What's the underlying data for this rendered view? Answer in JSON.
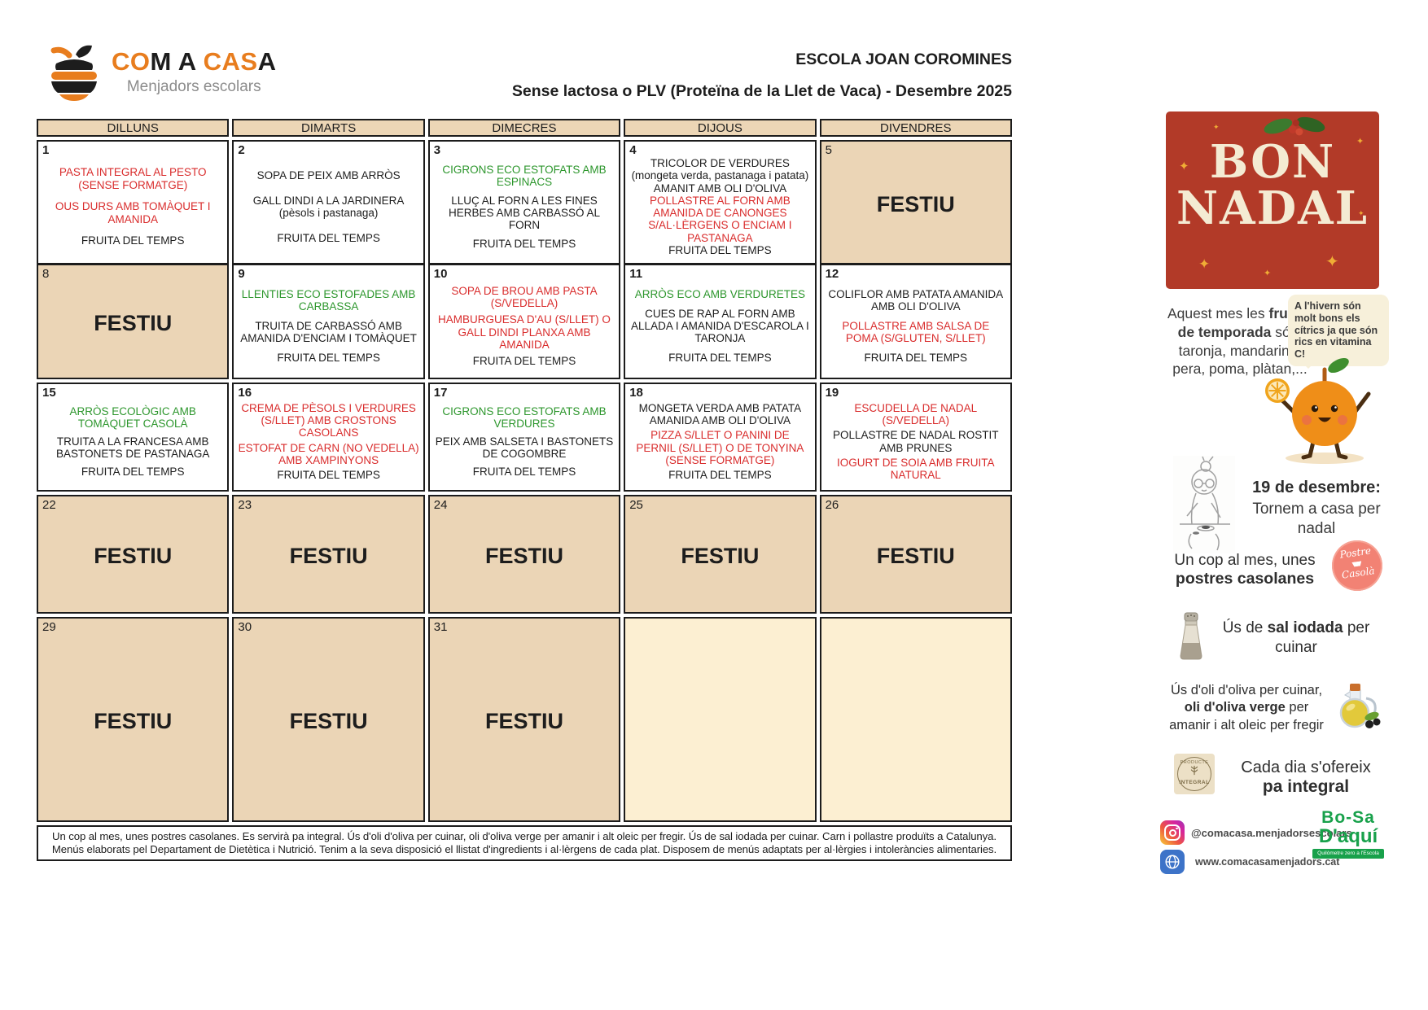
{
  "logo": {
    "parts": [
      {
        "text": "CO",
        "color": "orange"
      },
      {
        "text": "M A ",
        "color": "black"
      },
      {
        "text": "CAS",
        "color": "orange"
      },
      {
        "text": "A",
        "color": "black"
      }
    ],
    "subtitle": "Menjadors escolars"
  },
  "header": {
    "school": "ESCOLA JOAN COROMINES",
    "subtitle": "Sense lactosa o PLV (Proteïna de la Llet de Vaca) - Desembre 2025"
  },
  "colors": {
    "red": "#d92c2c",
    "green": "#2c962c",
    "black": "#1d1d1d",
    "accent_orange": "#e87d1e",
    "banner_red": "#b23a28",
    "festiu_tan": "#ebd5b6",
    "empty_cream": "#fcefd2"
  },
  "calendar": {
    "weekdays": [
      "DILLUNS",
      "DIMARTS",
      "DIMECRES",
      "DIJOUS",
      "DIVENDRES"
    ],
    "festiu_label": "FESTIU",
    "weeks": [
      [
        {
          "day": "1",
          "type": "menu",
          "items": [
            {
              "text": "PASTA INTEGRAL AL PESTO (SENSE FORMATGE)",
              "color": "red"
            },
            {
              "text": "OUS DURS AMB TOMÀQUET I AMANIDA",
              "color": "red"
            },
            {
              "text": "FRUITA DEL TEMPS",
              "color": "black"
            }
          ]
        },
        {
          "day": "2",
          "type": "menu",
          "items": [
            {
              "text": "SOPA DE PEIX AMB ARRÒS",
              "color": "black"
            },
            {
              "text": "GALL DINDI A LA JARDINERA (pèsols i pastanaga)",
              "color": "black"
            },
            {
              "text": "FRUITA DEL TEMPS",
              "color": "black"
            }
          ]
        },
        {
          "day": "3",
          "type": "menu",
          "items": [
            {
              "text": "CIGRONS ECO ESTOFATS AMB ESPINACS",
              "color": "green"
            },
            {
              "text": "LLUÇ AL FORN A LES FINES HERBES AMB CARBASSÓ AL FORN",
              "color": "black"
            },
            {
              "text": "FRUITA DEL TEMPS",
              "color": "black"
            }
          ]
        },
        {
          "day": "4",
          "type": "menu",
          "items": [
            {
              "text": "TRICOLOR DE VERDURES (mongeta verda, pastanaga i patata) AMANIT AMB OLI D'OLIVA",
              "color": "black"
            },
            {
              "text": "POLLASTRE AL FORN AMB AMANIDA DE CANONGES S/AL·LÈRGENS O ENCIAM I PASTANAGA",
              "color": "red"
            },
            {
              "text": "FRUITA DEL TEMPS",
              "color": "black"
            }
          ]
        },
        {
          "day": "5",
          "type": "festiu"
        }
      ],
      [
        {
          "day": "8",
          "type": "festiu"
        },
        {
          "day": "9",
          "type": "menu",
          "items": [
            {
              "text": "LLENTIES ECO ESTOFADES AMB CARBASSA",
              "color": "green"
            },
            {
              "text": "TRUITA DE CARBASSÓ AMB AMANIDA D'ENCIAM I TOMÀQUET",
              "color": "black"
            },
            {
              "text": "FRUITA DEL TEMPS",
              "color": "black"
            }
          ]
        },
        {
          "day": "10",
          "type": "menu",
          "items": [
            {
              "text": "SOPA DE BROU AMB PASTA (S/VEDELLA)",
              "color": "red"
            },
            {
              "text": "HAMBURGUESA D'AU (S/LLET) O GALL DINDI PLANXA AMB AMANIDA",
              "color": "red"
            },
            {
              "text": "FRUITA DEL TEMPS",
              "color": "black"
            }
          ]
        },
        {
          "day": "11",
          "type": "menu",
          "items": [
            {
              "text": "ARRÒS ECO AMB VERDURETES",
              "color": "green"
            },
            {
              "text": "CUES DE RAP AL FORN AMB ALLADA I AMANIDA D'ESCAROLA I TARONJA",
              "color": "black"
            },
            {
              "text": "FRUITA DEL TEMPS",
              "color": "black"
            }
          ]
        },
        {
          "day": "12",
          "type": "menu",
          "items": [
            {
              "text": "COLIFLOR AMB PATATA AMANIDA AMB OLI D'OLIVA",
              "color": "black"
            },
            {
              "text": "POLLASTRE AMB SALSA DE POMA (S/GLUTEN, S/LLET)",
              "color": "red"
            },
            {
              "text": "FRUITA DEL TEMPS",
              "color": "black"
            }
          ]
        }
      ],
      [
        {
          "day": "15",
          "type": "menu",
          "items": [
            {
              "text": "ARRÒS ECOLÒGIC AMB TOMÀQUET CASOLÀ",
              "color": "green"
            },
            {
              "text": "TRUITA A LA FRANCESA AMB BASTONETS DE PASTANAGA",
              "color": "black"
            },
            {
              "text": "FRUITA DEL TEMPS",
              "color": "black"
            }
          ]
        },
        {
          "day": "16",
          "type": "menu",
          "items": [
            {
              "text": "CREMA DE PÈSOLS I VERDURES (S/LLET) AMB CROSTONS CASOLANS",
              "color": "red"
            },
            {
              "text": "ESTOFAT DE CARN (NO VEDELLA) AMB XAMPINYONS",
              "color": "red"
            },
            {
              "text": "FRUITA DEL TEMPS",
              "color": "black"
            }
          ]
        },
        {
          "day": "17",
          "type": "menu",
          "items": [
            {
              "text": "CIGRONS ECO ESTOFATS AMB VERDURES",
              "color": "green"
            },
            {
              "text": "PEIX AMB SALSETA I BASTONETS DE COGOMBRE",
              "color": "black"
            },
            {
              "text": "FRUITA DEL TEMPS",
              "color": "black"
            }
          ]
        },
        {
          "day": "18",
          "type": "menu",
          "items": [
            {
              "text": "MONGETA VERDA AMB PATATA AMANIDA AMB OLI D'OLIVA",
              "color": "black"
            },
            {
              "text": "PIZZA S/LLET O PANINI DE PERNIL (S/LLET) O DE TONYINA (SENSE FORMATGE)",
              "color": "red"
            },
            {
              "text": "FRUITA DEL TEMPS",
              "color": "black"
            }
          ]
        },
        {
          "day": "19",
          "type": "menu",
          "items": [
            {
              "text": "ESCUDELLA DE NADAL (S/VEDELLA)",
              "color": "red"
            },
            {
              "text": "POLLASTRE DE NADAL ROSTIT AMB PRUNES",
              "color": "black"
            },
            {
              "text": "IOGURT DE SOIA AMB FRUITA NATURAL",
              "color": "red"
            }
          ]
        }
      ],
      [
        {
          "day": "22",
          "type": "festiu"
        },
        {
          "day": "23",
          "type": "festiu"
        },
        {
          "day": "24",
          "type": "festiu"
        },
        {
          "day": "25",
          "type": "festiu"
        },
        {
          "day": "26",
          "type": "festiu"
        }
      ],
      [
        {
          "day": "29",
          "type": "festiu"
        },
        {
          "day": "30",
          "type": "festiu"
        },
        {
          "day": "31",
          "type": "festiu"
        },
        {
          "type": "empty"
        },
        {
          "type": "empty"
        }
      ]
    ]
  },
  "footer_note": "Un cop al mes, unes postres casolanes. Es servirà pa integral. Ús d'oli d'oliva per cuinar, oli d'oliva verge per amanir i alt oleic per fregir. Ús de sal iodada per cuinar. Carn i pollastre produïts a Catalunya. Menús elaborats pel Departament de Dietètica i Nutrició. Tenim a la seva disposició el llistat d'ingredients i al·lèrgens de cada plat. Disposem de menús adaptats per al·lèrgies i intoleràncies alimentaries.",
  "sidebar": {
    "banner": {
      "line1": "BON",
      "line2": "NADAL"
    },
    "fruits": {
      "pre": "Aquest mes les ",
      "bold": "fruites de temporada",
      "post": " són: taronja, mandarina, pera, poma, plàtan,..."
    },
    "bubble": "A l'hivern són molt bons els cítrics ja que són rics en vitamina C!",
    "dec19": {
      "bold": "19 de desembre:",
      "rest": "Tornem a casa per nadal"
    },
    "postres": {
      "pre": "Un cop al mes, unes",
      "bold": "postres casolanes"
    },
    "postres_badge": {
      "line1": "Postre",
      "line2": "Casolà"
    },
    "salt": {
      "pre": "Ús de ",
      "bold": "sal iodada",
      "post": " per cuinar"
    },
    "oil": {
      "pre": "Ús d'oli d'oliva per cuinar, ",
      "bold": "oli d'oliva verge",
      "post": " per amanir i alt oleic per fregir"
    },
    "bread": {
      "pre": "Cada dia s'ofereix",
      "bold": "pa integral"
    },
    "bread_badge": {
      "line1": "PRODUCTE",
      "line2": "INTEGRAL"
    },
    "social": {
      "instagram": "@comacasa.menjadorsescolars",
      "web": "www.comacasamenjadors.cat"
    },
    "brand": {
      "line1": "Bo-Sa",
      "line2": "D'aquí",
      "tagline": "Quilòmetre zero a l'Escola"
    }
  }
}
